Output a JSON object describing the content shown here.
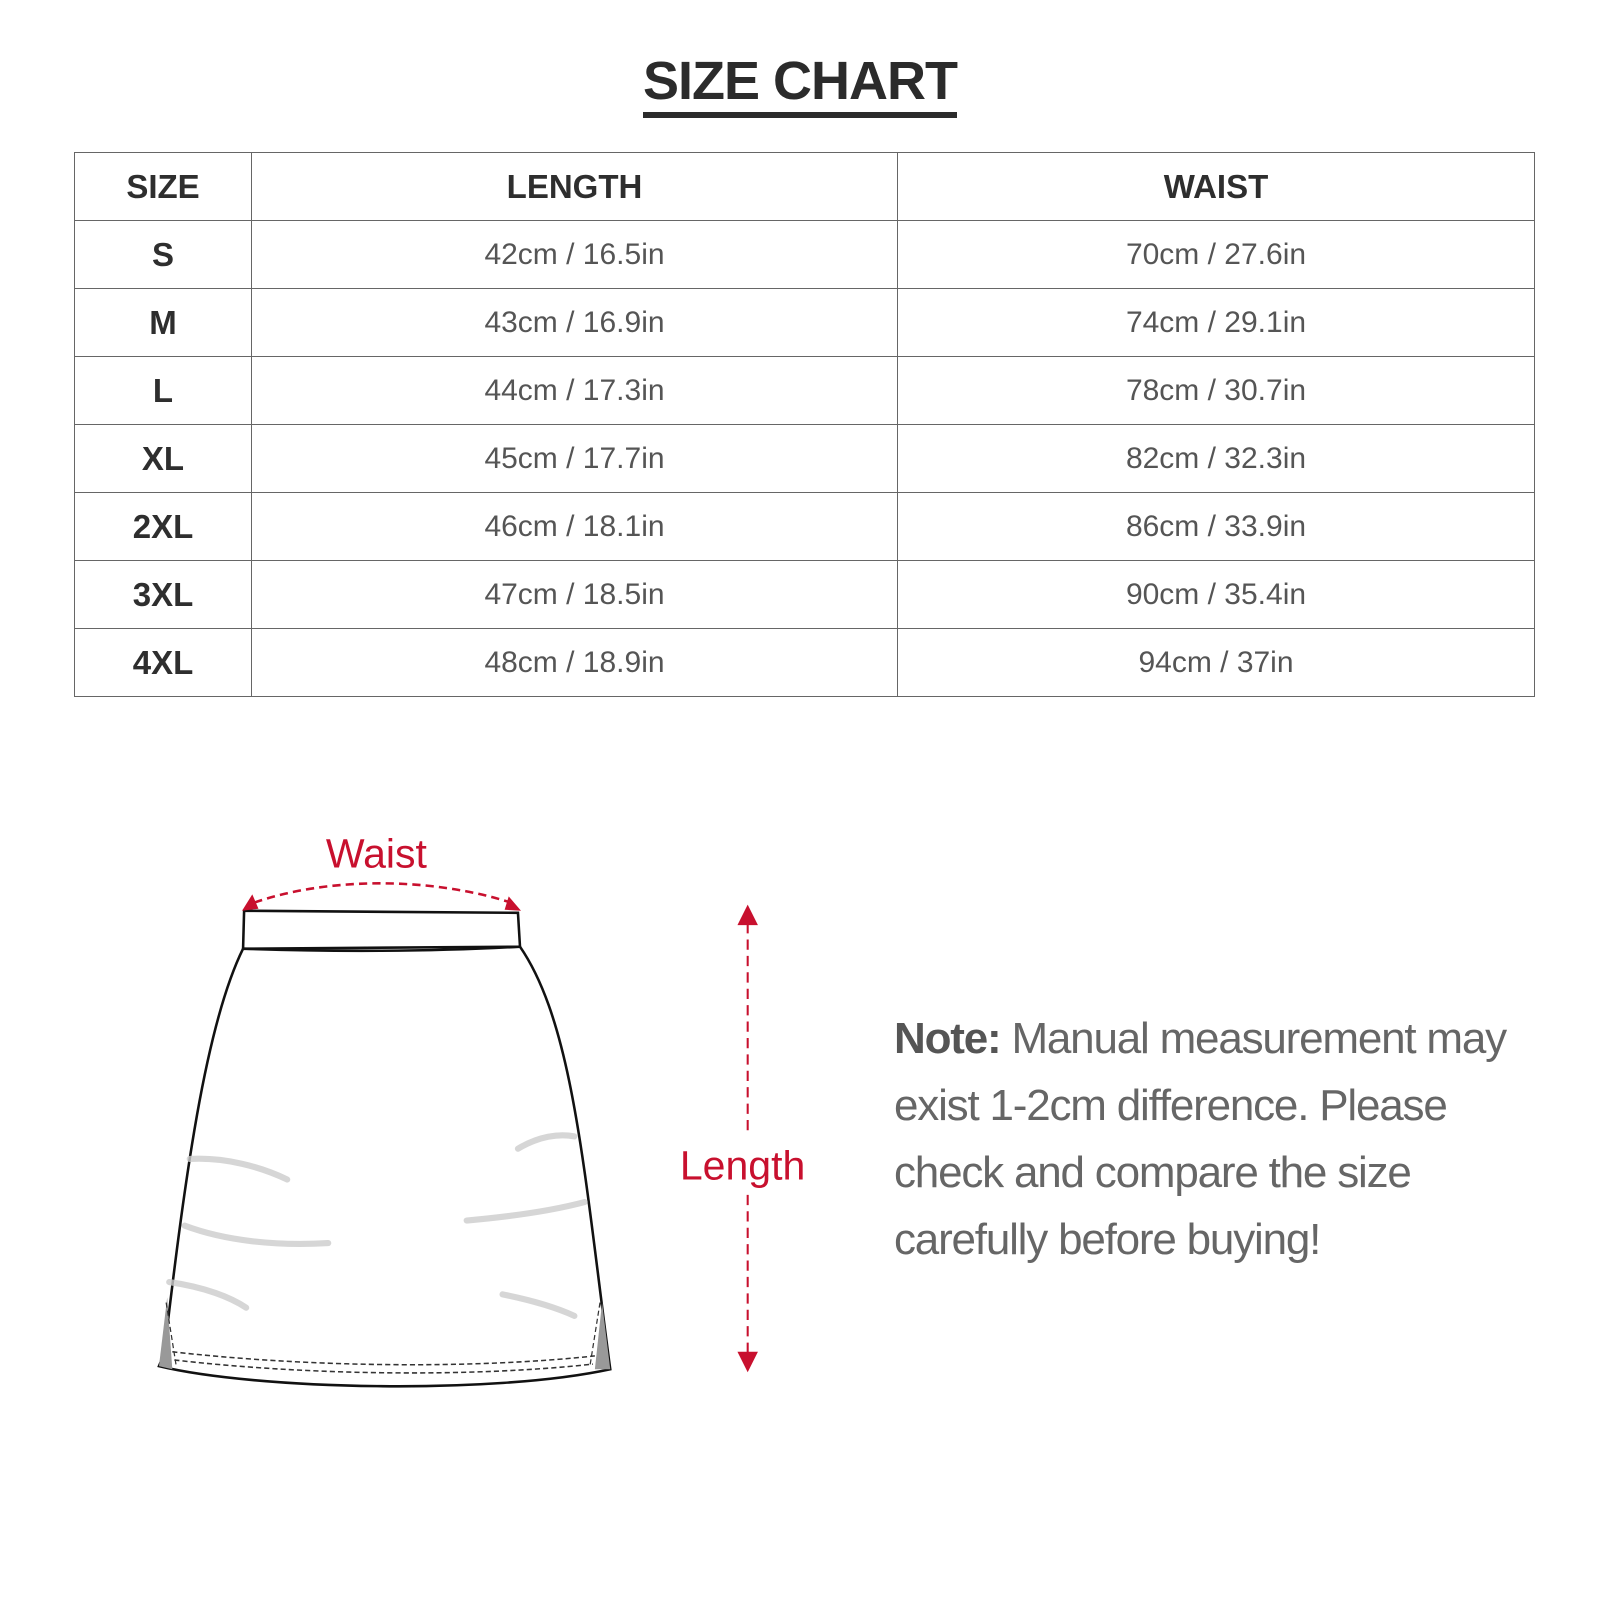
{
  "title": "SIZE CHART",
  "table": {
    "headers": [
      "SIZE",
      "LENGTH",
      "WAIST"
    ],
    "rows": [
      {
        "size": "S",
        "length": "42cm / 16.5in",
        "waist": "70cm / 27.6in"
      },
      {
        "size": "M",
        "length": "43cm / 16.9in",
        "waist": "74cm / 29.1in"
      },
      {
        "size": "L",
        "length": "44cm / 17.3in",
        "waist": "78cm / 30.7in"
      },
      {
        "size": "XL",
        "length": "45cm / 17.7in",
        "waist": "82cm / 32.3in"
      },
      {
        "size": "2XL",
        "length": "46cm / 18.1in",
        "waist": "86cm / 33.9in"
      },
      {
        "size": "3XL",
        "length": "47cm / 18.5in",
        "waist": "90cm / 35.4in"
      },
      {
        "size": "4XL",
        "length": "48cm / 18.9in",
        "waist": "94cm / 37in"
      }
    ]
  },
  "diagram": {
    "waist_label": "Waist",
    "length_label": "Length",
    "accent_color": "#c8102e"
  },
  "note": {
    "label": "Note:",
    "text": " Manual measurement may exist 1-2cm difference. Please check and compare the size carefully before buying!"
  }
}
